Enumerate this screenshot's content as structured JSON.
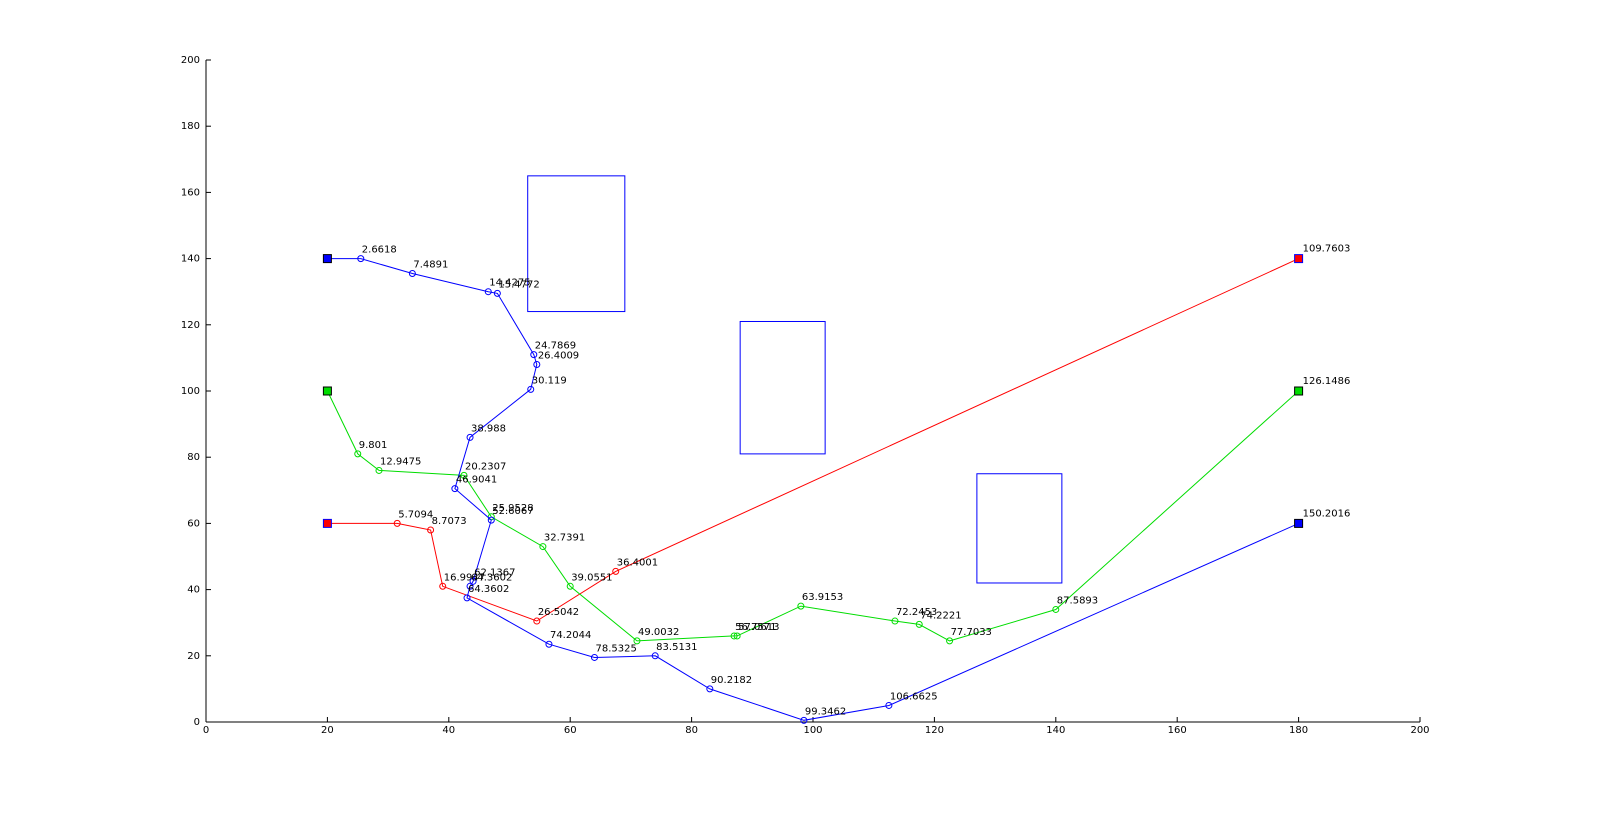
{
  "chart_data": {
    "type": "line",
    "title": "",
    "xlabel": "",
    "ylabel": "",
    "xlim": [
      0,
      200
    ],
    "ylim": [
      0,
      200
    ],
    "grid": false,
    "x_ticks": [
      "0",
      "20",
      "40",
      "60",
      "80",
      "100",
      "120",
      "140",
      "160",
      "180",
      "200"
    ],
    "y_ticks": [
      "0",
      "20",
      "40",
      "60",
      "80",
      "100",
      "120",
      "140",
      "160",
      "180",
      "200"
    ],
    "obstacles": [
      {
        "x": [
          53,
          69
        ],
        "y": [
          124,
          165
        ],
        "color": "#0000ff"
      },
      {
        "x": [
          88,
          102
        ],
        "y": [
          81,
          121
        ],
        "color": "#0000ff"
      },
      {
        "x": [
          127,
          141
        ],
        "y": [
          42,
          75
        ],
        "color": "#0000ff"
      }
    ],
    "series": [
      {
        "color": "#ff0000",
        "start": {
          "x": 20,
          "y": 60
        },
        "end": {
          "x": 180,
          "y": 140,
          "label": "109.7603"
        },
        "points": [
          {
            "x": 31.5,
            "y": 60,
            "label": "5.7094"
          },
          {
            "x": 37,
            "y": 58,
            "label": "8.7073"
          },
          {
            "x": 39,
            "y": 41,
            "label": "16.9947"
          },
          {
            "x": 54.5,
            "y": 30.5,
            "label": "26.5042"
          },
          {
            "x": 67.5,
            "y": 45.5,
            "label": "36.4001"
          }
        ]
      },
      {
        "color": "#00dd00",
        "start": {
          "x": 20,
          "y": 100
        },
        "end": {
          "x": 180,
          "y": 100,
          "label": "126.1486"
        },
        "points": [
          {
            "x": 25,
            "y": 81,
            "label": "9.801"
          },
          {
            "x": 28.5,
            "y": 76,
            "label": "12.9475"
          },
          {
            "x": 42.5,
            "y": 74.5,
            "label": "20.2307"
          },
          {
            "x": 47,
            "y": 62,
            "label": "25.9528"
          },
          {
            "x": 55.5,
            "y": 53,
            "label": "32.7391"
          },
          {
            "x": 60,
            "y": 41,
            "label": "39.0551"
          },
          {
            "x": 71,
            "y": 24.5,
            "label": "49.0032"
          },
          {
            "x": 87,
            "y": 26,
            "label": "56.7571"
          },
          {
            "x": 87.5,
            "y": 26,
            "label": "57.0613"
          },
          {
            "x": 98,
            "y": 35,
            "label": "63.9153"
          },
          {
            "x": 113.5,
            "y": 30.5,
            "label": "72.2453"
          },
          {
            "x": 117.5,
            "y": 29.5,
            "label": "74.2221"
          },
          {
            "x": 122.5,
            "y": 24.5,
            "label": "77.7033"
          },
          {
            "x": 140,
            "y": 34,
            "label": "87.5893"
          }
        ]
      },
      {
        "color": "#0000ff",
        "start": {
          "x": 20,
          "y": 140
        },
        "end": {
          "x": 180,
          "y": 60,
          "label": "150.2016"
        },
        "points": [
          {
            "x": 25.5,
            "y": 140,
            "label": "2.6618"
          },
          {
            "x": 34,
            "y": 135.5,
            "label": "7.4891"
          },
          {
            "x": 46.5,
            "y": 130,
            "label": "14.4275"
          },
          {
            "x": 48,
            "y": 129.5,
            "label": "15.4772"
          },
          {
            "x": 54,
            "y": 111,
            "label": "24.7869"
          },
          {
            "x": 54.5,
            "y": 108,
            "label": "26.4009"
          },
          {
            "x": 53.5,
            "y": 100.5,
            "label": "30.119"
          },
          {
            "x": 43.5,
            "y": 86,
            "label": "38.988"
          },
          {
            "x": 41,
            "y": 70.5,
            "label": "46.9041"
          },
          {
            "x": 47,
            "y": 61,
            "label": "52.6067"
          },
          {
            "x": 44,
            "y": 42.5,
            "label": "62.1367"
          },
          {
            "x": 43.5,
            "y": 41,
            "label": "64.3602"
          },
          {
            "x": 43,
            "y": 37.5,
            "label": "64.3602"
          },
          {
            "x": 56.5,
            "y": 23.5,
            "label": "74.2044"
          },
          {
            "x": 64,
            "y": 19.5,
            "label": "78.5325"
          },
          {
            "x": 74,
            "y": 20,
            "label": "83.5131"
          },
          {
            "x": 83,
            "y": 10,
            "label": "90.2182"
          },
          {
            "x": 98.5,
            "y": 0.5,
            "label": "99.3462"
          },
          {
            "x": 112.5,
            "y": 5,
            "label": "106.6625"
          }
        ]
      }
    ]
  }
}
